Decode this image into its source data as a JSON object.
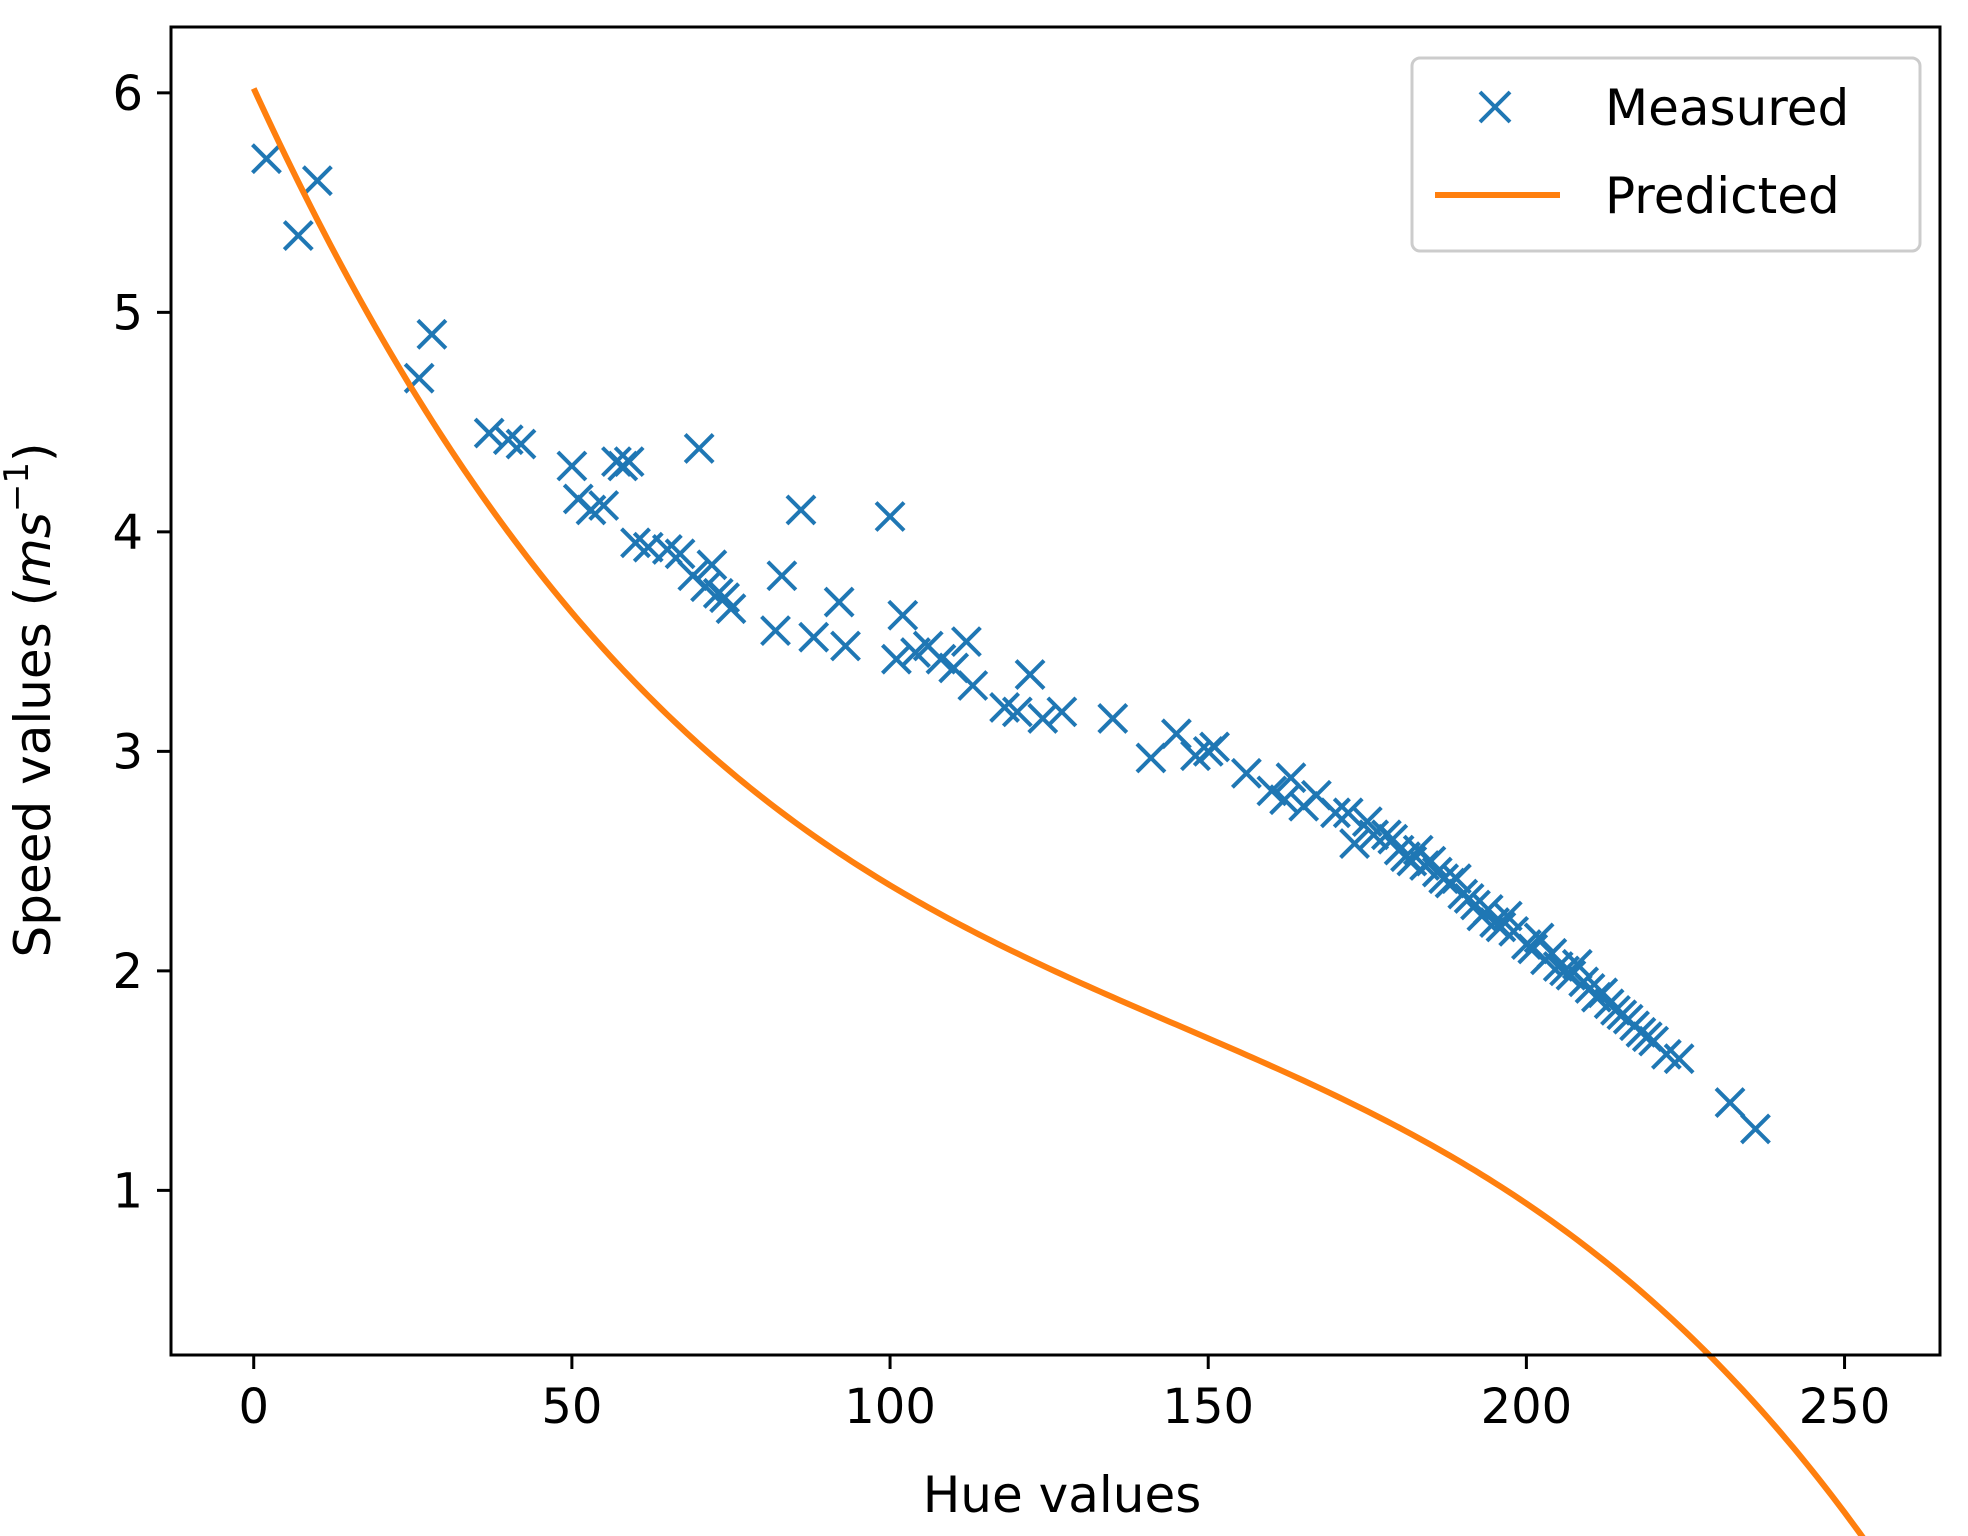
{
  "chart_data": {
    "type": "scatter",
    "title": "",
    "xlabel": "Hue values",
    "ylabel_text": "Speed values (",
    "ylabel_math": "ms",
    "ylabel_sup": "−1",
    "ylabel_close": ")",
    "xlim": [
      -13,
      265
    ],
    "ylim": [
      0.25,
      6.3
    ],
    "xticks": [
      0,
      50,
      100,
      150,
      200,
      250
    ],
    "yticks": [
      1,
      2,
      3,
      4,
      5,
      6
    ],
    "xtick_labels": [
      "0",
      "50",
      "100",
      "150",
      "200",
      "250"
    ],
    "ytick_labels": [
      "1",
      "2",
      "3",
      "4",
      "5",
      "6"
    ],
    "legend_position": "top-right",
    "colors": {
      "measured": "#1f77b4",
      "predicted": "#ff7f0e",
      "axes": "#000000"
    },
    "series": [
      {
        "name": "Measured",
        "marker": "x",
        "points": [
          [
            2,
            5.7
          ],
          [
            7,
            5.35
          ],
          [
            10,
            5.6
          ],
          [
            26,
            4.7
          ],
          [
            28,
            4.9
          ],
          [
            37,
            4.45
          ],
          [
            40,
            4.42
          ],
          [
            42,
            4.4
          ],
          [
            50,
            4.3
          ],
          [
            51,
            4.15
          ],
          [
            53,
            4.1
          ],
          [
            55,
            4.12
          ],
          [
            57,
            4.32
          ],
          [
            58,
            4.3
          ],
          [
            59,
            4.32
          ],
          [
            60,
            3.95
          ],
          [
            62,
            3.93
          ],
          [
            65,
            3.92
          ],
          [
            67,
            3.9
          ],
          [
            69,
            3.8
          ],
          [
            70,
            4.38
          ],
          [
            71,
            3.75
          ],
          [
            72,
            3.85
          ],
          [
            73,
            3.72
          ],
          [
            74,
            3.7
          ],
          [
            75,
            3.65
          ],
          [
            82,
            3.55
          ],
          [
            83,
            3.8
          ],
          [
            86,
            4.1
          ],
          [
            88,
            3.52
          ],
          [
            92,
            3.68
          ],
          [
            93,
            3.48
          ],
          [
            100,
            4.07
          ],
          [
            101,
            3.42
          ],
          [
            102,
            3.62
          ],
          [
            104,
            3.45
          ],
          [
            106,
            3.48
          ],
          [
            108,
            3.42
          ],
          [
            110,
            3.38
          ],
          [
            112,
            3.5
          ],
          [
            113,
            3.3
          ],
          [
            118,
            3.2
          ],
          [
            120,
            3.18
          ],
          [
            122,
            3.35
          ],
          [
            124,
            3.15
          ],
          [
            127,
            3.18
          ],
          [
            135,
            3.15
          ],
          [
            141,
            2.97
          ],
          [
            145,
            3.08
          ],
          [
            148,
            2.98
          ],
          [
            150,
            3.0
          ],
          [
            151,
            3.02
          ],
          [
            156,
            2.9
          ],
          [
            160,
            2.82
          ],
          [
            162,
            2.78
          ],
          [
            163,
            2.88
          ],
          [
            165,
            2.75
          ],
          [
            167,
            2.8
          ],
          [
            170,
            2.72
          ],
          [
            172,
            2.72
          ],
          [
            173,
            2.58
          ],
          [
            175,
            2.68
          ],
          [
            176,
            2.62
          ],
          [
            178,
            2.62
          ],
          [
            179,
            2.6
          ],
          [
            180,
            2.55
          ],
          [
            181,
            2.52
          ],
          [
            182,
            2.5
          ],
          [
            183,
            2.55
          ],
          [
            184,
            2.48
          ],
          [
            185,
            2.5
          ],
          [
            186,
            2.45
          ],
          [
            187,
            2.42
          ],
          [
            188,
            2.4
          ],
          [
            189,
            2.42
          ],
          [
            190,
            2.35
          ],
          [
            191,
            2.33
          ],
          [
            192,
            2.3
          ],
          [
            193,
            2.25
          ],
          [
            194,
            2.28
          ],
          [
            195,
            2.22
          ],
          [
            196,
            2.2
          ],
          [
            197,
            2.25
          ],
          [
            198,
            2.18
          ],
          [
            200,
            2.12
          ],
          [
            201,
            2.1
          ],
          [
            202,
            2.15
          ],
          [
            203,
            2.05
          ],
          [
            204,
            2.08
          ],
          [
            205,
            2.02
          ],
          [
            206,
            2.0
          ],
          [
            207,
            1.98
          ],
          [
            208,
            2.03
          ],
          [
            209,
            1.95
          ],
          [
            210,
            1.92
          ],
          [
            211,
            1.88
          ],
          [
            212,
            1.9
          ],
          [
            213,
            1.85
          ],
          [
            214,
            1.82
          ],
          [
            215,
            1.8
          ],
          [
            216,
            1.78
          ],
          [
            217,
            1.75
          ],
          [
            218,
            1.72
          ],
          [
            219,
            1.7
          ],
          [
            220,
            1.68
          ],
          [
            222,
            1.62
          ],
          [
            224,
            1.6
          ],
          [
            232,
            1.4
          ],
          [
            236,
            1.28
          ]
        ]
      },
      {
        "name": "Predicted",
        "marker": "line",
        "cubic_coefficients": [
          6.02,
          -0.0632,
          0.000349,
          -8e-07
        ]
      }
    ]
  }
}
